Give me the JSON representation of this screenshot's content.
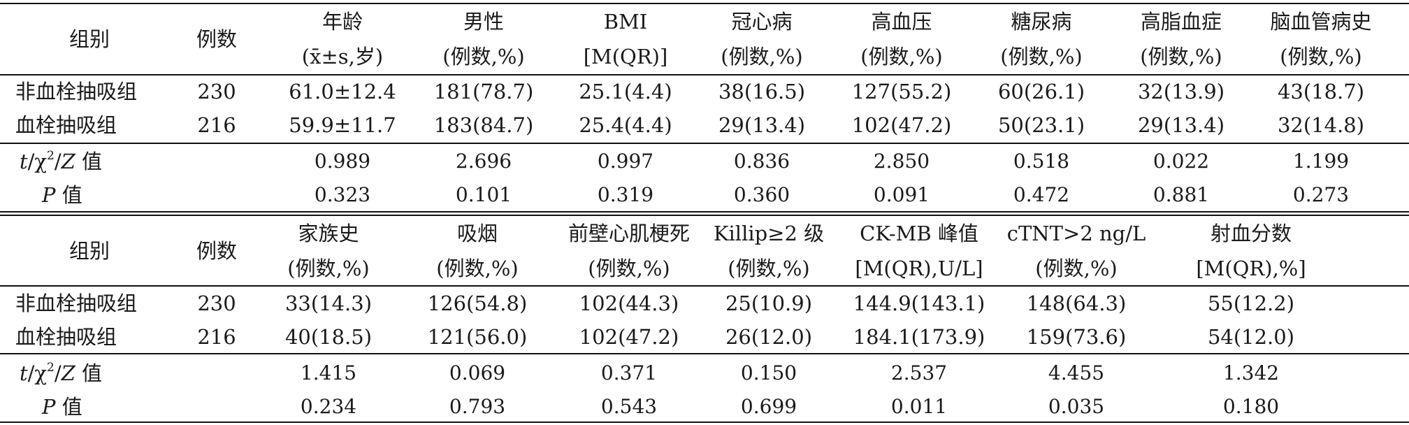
{
  "table1": {
    "group_label": "组别",
    "count_label": "例数",
    "headers": [
      {
        "title": "年龄",
        "unit": "(x̄±s,岁)"
      },
      {
        "title": "男性",
        "unit": "(例数,%)"
      },
      {
        "title": "BMI",
        "unit": "[M(QR)]"
      },
      {
        "title": "冠心病",
        "unit": "(例数,%)"
      },
      {
        "title": "高血压",
        "unit": "(例数,%)"
      },
      {
        "title": "糖尿病",
        "unit": "(例数,%)"
      },
      {
        "title": "高脂血症",
        "unit": "(例数,%)"
      },
      {
        "title": "脑血管病史",
        "unit": "(例数,%)"
      }
    ],
    "rows": [
      {
        "group": "非血栓抽吸组",
        "n": "230",
        "values": [
          "61.0±12.4",
          "181(78.7)",
          "25.1(4.4)",
          "38(16.5)",
          "127(55.2)",
          "60(26.1)",
          "32(13.9)",
          "43(18.7)"
        ]
      },
      {
        "group": "血栓抽吸组",
        "n": "216",
        "values": [
          "59.9±11.7",
          "183(84.7)",
          "25.4(4.4)",
          "29(13.4)",
          "102(47.2)",
          "50(23.1)",
          "29(13.4)",
          "32(14.8)"
        ]
      }
    ],
    "stat_label": "t/χ²/Z 值",
    "stats": [
      "0.989",
      "2.696",
      "0.997",
      "0.836",
      "2.850",
      "0.518",
      "0.022",
      "1.199"
    ],
    "p_label": "P 值",
    "p_values": [
      "0.323",
      "0.101",
      "0.319",
      "0.360",
      "0.091",
      "0.472",
      "0.881",
      "0.273"
    ]
  },
  "table2": {
    "group_label": "组别",
    "count_label": "例数",
    "headers": [
      {
        "title": "家族史",
        "unit": "(例数,%)"
      },
      {
        "title": "吸烟",
        "unit": "(例数,%)"
      },
      {
        "title": "前壁心肌梗死",
        "unit": "(例数,%)"
      },
      {
        "title": "Killip≥2 级",
        "unit": "(例数,%)"
      },
      {
        "title": "CK-MB 峰值",
        "unit": "[M(QR),U/L]"
      },
      {
        "title": "cTNT>2 ng/L",
        "unit": "(例数,%)"
      },
      {
        "title": "射血分数",
        "unit": "[M(QR),%]"
      }
    ],
    "rows": [
      {
        "group": "非血栓抽吸组",
        "n": "230",
        "values": [
          "33(14.3)",
          "126(54.8)",
          "102(44.3)",
          "25(10.9)",
          "144.9(143.1)",
          "148(64.3)",
          "55(12.2)"
        ]
      },
      {
        "group": "血栓抽吸组",
        "n": "216",
        "values": [
          "40(18.5)",
          "121(56.0)",
          "102(47.2)",
          "26(12.0)",
          "184.1(173.9)",
          "159(73.6)",
          "54(12.0)"
        ]
      }
    ],
    "stat_label": "t/χ²/Z 值",
    "stats": [
      "1.415",
      "0.069",
      "0.371",
      "0.150",
      "2.537",
      "4.455",
      "1.342"
    ],
    "p_label": "P 值",
    "p_values": [
      "0.234",
      "0.793",
      "0.543",
      "0.699",
      "0.011",
      "0.035",
      "0.180"
    ]
  }
}
